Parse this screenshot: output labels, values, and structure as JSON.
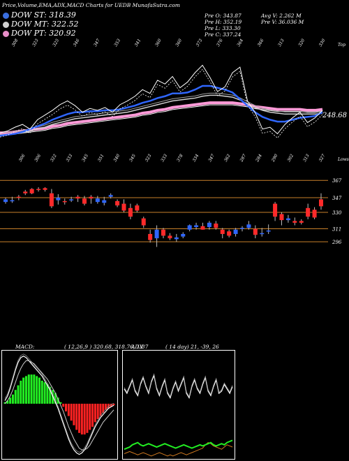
{
  "header": {
    "title": "Price,Volume,EMA,ADX,MACD Charts for UEDB MunafaSutra.com"
  },
  "legend": {
    "st": {
      "label": "DOW ST: 318.39",
      "color": "#3a6fe0"
    },
    "mt": {
      "label": "DOW MT: 322.52",
      "color": "#d0d0d0"
    },
    "pt": {
      "label": "DOW PT: 320.92",
      "color": "#e88ec8"
    }
  },
  "stats": {
    "pre_o": "Pre  O: 343.87",
    "pre_h": "Pre  H: 352.19",
    "pre_l": "Pre  L: 333.30",
    "pre_c": "Pre  C: 337.24",
    "avg_v": "Avg V: 2.262  M",
    "pre_v": "Pre  V: 36.036  M"
  },
  "chart_data": [
    {
      "type": "line",
      "name": "ema-panel",
      "top_axis_label": "Top",
      "last_value_label": "248.68",
      "top_ticks": [
        "308",
        "323",
        "325",
        "346",
        "347",
        "353",
        "341",
        "360",
        "360",
        "373",
        "376",
        "364",
        "366",
        "313",
        "320",
        "330"
      ],
      "bottom_ticks": [
        "306",
        "306",
        "322",
        "333",
        "345",
        "351",
        "340",
        "345",
        "323",
        "333",
        "378",
        "334",
        "347",
        "362",
        "287",
        "284",
        "290",
        "302",
        "313",
        "327"
      ],
      "bottom_axis_label": "Lows",
      "price": [
        296,
        298,
        302,
        305,
        300,
        310,
        315,
        320,
        326,
        330,
        325,
        318,
        322,
        320,
        323,
        318,
        326,
        330,
        335,
        342,
        338,
        352,
        348,
        356,
        344,
        350,
        360,
        368,
        355,
        340,
        345,
        360,
        366,
        330,
        318,
        300,
        302,
        295,
        305,
        312,
        318,
        307,
        312,
        320
      ],
      "ema_short": [
        293,
        294,
        295,
        297,
        300,
        303,
        306,
        310,
        313,
        316,
        318,
        318,
        319,
        319,
        320,
        320,
        321,
        323,
        325,
        328,
        330,
        333,
        335,
        338,
        338,
        339,
        342,
        346,
        346,
        344,
        342,
        339,
        332,
        325,
        318,
        313,
        310,
        308,
        308,
        310,
        312,
        313,
        314,
        318
      ],
      "ema_mid": [
        294,
        294,
        295,
        296,
        298,
        300,
        302,
        305,
        307,
        309,
        311,
        312,
        313,
        314,
        315,
        316,
        317,
        318,
        320,
        322,
        324,
        326,
        328,
        330,
        331,
        332,
        333,
        335,
        336,
        336,
        335,
        334,
        331,
        327,
        323,
        320,
        318,
        317,
        316,
        316,
        316,
        316,
        316,
        317
      ],
      "ema_long": [
        296,
        296,
        297,
        298,
        299,
        300,
        301,
        303,
        304,
        306,
        307,
        308,
        309,
        310,
        311,
        312,
        313,
        314,
        315,
        317,
        318,
        320,
        321,
        323,
        324,
        325,
        326,
        327,
        328,
        328,
        328,
        328,
        327,
        326,
        324,
        323,
        322,
        321,
        321,
        321,
        321,
        320,
        320,
        321
      ]
    },
    {
      "type": "candlestick",
      "name": "price-panel",
      "levels": [
        367,
        347,
        330,
        311,
        296
      ],
      "candles": [
        {
          "o": 342,
          "h": 347,
          "l": 340,
          "c": 345
        },
        {
          "o": 343,
          "h": 348,
          "l": 341,
          "c": 344
        },
        {
          "o": 348,
          "h": 350,
          "l": 344,
          "c": 347
        },
        {
          "o": 354,
          "h": 356,
          "l": 350,
          "c": 352
        },
        {
          "o": 357,
          "h": 358,
          "l": 351,
          "c": 352
        },
        {
          "o": 357,
          "h": 359,
          "l": 354,
          "c": 356
        },
        {
          "o": 358,
          "h": 359,
          "l": 354,
          "c": 356
        },
        {
          "o": 352,
          "h": 357,
          "l": 335,
          "c": 337
        },
        {
          "o": 344,
          "h": 351,
          "l": 339,
          "c": 347
        },
        {
          "o": 343,
          "h": 346,
          "l": 339,
          "c": 342
        },
        {
          "o": 345,
          "h": 348,
          "l": 342,
          "c": 345
        },
        {
          "o": 348,
          "h": 350,
          "l": 342,
          "c": 346
        },
        {
          "o": 346,
          "h": 349,
          "l": 338,
          "c": 340
        },
        {
          "o": 348,
          "h": 350,
          "l": 340,
          "c": 346
        },
        {
          "o": 342,
          "h": 349,
          "l": 340,
          "c": 346
        },
        {
          "o": 341,
          "h": 348,
          "l": 338,
          "c": 344
        },
        {
          "o": 348,
          "h": 352,
          "l": 346,
          "c": 350
        },
        {
          "o": 343,
          "h": 345,
          "l": 336,
          "c": 338
        },
        {
          "o": 340,
          "h": 345,
          "l": 330,
          "c": 332
        },
        {
          "o": 335,
          "h": 340,
          "l": 322,
          "c": 325
        },
        {
          "o": 338,
          "h": 340,
          "l": 330,
          "c": 332
        },
        {
          "o": 323,
          "h": 325,
          "l": 312,
          "c": 315
        },
        {
          "o": 305,
          "h": 310,
          "l": 295,
          "c": 298
        },
        {
          "o": 300,
          "h": 315,
          "l": 290,
          "c": 310
        },
        {
          "o": 310,
          "h": 312,
          "l": 300,
          "c": 303
        },
        {
          "o": 303,
          "h": 306,
          "l": 298,
          "c": 300
        },
        {
          "o": 299,
          "h": 305,
          "l": 296,
          "c": 301
        },
        {
          "o": 302,
          "h": 307,
          "l": 300,
          "c": 305
        },
        {
          "o": 310,
          "h": 316,
          "l": 308,
          "c": 315
        },
        {
          "o": 313,
          "h": 318,
          "l": 310,
          "c": 315
        },
        {
          "o": 314,
          "h": 318,
          "l": 310,
          "c": 310
        },
        {
          "o": 313,
          "h": 320,
          "l": 310,
          "c": 318
        },
        {
          "o": 317,
          "h": 320,
          "l": 310,
          "c": 312
        },
        {
          "o": 310,
          "h": 312,
          "l": 300,
          "c": 305
        },
        {
          "o": 308,
          "h": 310,
          "l": 301,
          "c": 303
        },
        {
          "o": 305,
          "h": 312,
          "l": 302,
          "c": 310
        },
        {
          "o": 312,
          "h": 314,
          "l": 308,
          "c": 312
        },
        {
          "o": 312,
          "h": 320,
          "l": 310,
          "c": 316
        },
        {
          "o": 311,
          "h": 315,
          "l": 300,
          "c": 304
        },
        {
          "o": 306,
          "h": 312,
          "l": 302,
          "c": 306
        },
        {
          "o": 309,
          "h": 316,
          "l": 305,
          "c": 309
        },
        {
          "o": 340,
          "h": 342,
          "l": 320,
          "c": 325
        },
        {
          "o": 328,
          "h": 330,
          "l": 315,
          "c": 321
        },
        {
          "o": 321,
          "h": 327,
          "l": 318,
          "c": 323
        },
        {
          "o": 320,
          "h": 324,
          "l": 315,
          "c": 318
        },
        {
          "o": 320,
          "h": 322,
          "l": 316,
          "c": 318
        },
        {
          "o": 335,
          "h": 340,
          "l": 322,
          "c": 325
        },
        {
          "o": 333,
          "h": 336,
          "l": 322,
          "c": 324
        },
        {
          "o": 345,
          "h": 352,
          "l": 333,
          "c": 337
        }
      ]
    },
    {
      "type": "bar",
      "name": "macd-panel",
      "label": "MACD:",
      "params": "( 12,26,9 ) 320.68,  318.76,  1.87",
      "histogram": [
        1,
        2,
        4,
        6,
        9,
        12,
        15,
        17,
        18,
        19,
        19,
        19,
        18,
        17,
        15,
        14,
        13,
        11,
        9,
        7,
        4,
        1,
        -2,
        -5,
        -8,
        -11,
        -14,
        -17,
        -19,
        -20,
        -20,
        -19,
        -17,
        -15,
        -12,
        -10,
        -8,
        -6,
        -4,
        -3,
        -2,
        -1
      ],
      "macd_line": [
        2,
        5,
        10,
        16,
        22,
        27,
        30,
        31,
        30,
        28,
        26,
        24,
        22,
        20,
        18,
        15,
        12,
        9,
        5,
        1,
        -3,
        -8,
        -13,
        -18,
        -23,
        -27,
        -30,
        -32,
        -33,
        -32,
        -30,
        -27,
        -23,
        -19,
        -15,
        -12,
        -9,
        -7,
        -5,
        -3,
        -2,
        -1
      ],
      "signal_line": [
        0,
        2,
        5,
        9,
        14,
        19,
        23,
        26,
        28,
        28,
        27,
        26,
        24,
        22,
        20,
        18,
        16,
        13,
        10,
        7,
        3,
        -1,
        -5,
        -10,
        -15,
        -19,
        -23,
        -26,
        -29,
        -30,
        -30,
        -29,
        -27,
        -24,
        -21,
        -18,
        -15,
        -12,
        -10,
        -8,
        -6,
        -4
      ]
    },
    {
      "type": "line",
      "name": "adx-panel",
      "label": "ADX",
      "params": "( 14  day) 21,  -39,  26",
      "white_line": [
        62,
        58,
        64,
        70,
        60,
        56,
        66,
        72,
        64,
        58,
        68,
        74,
        62,
        56,
        64,
        70,
        58,
        54,
        62,
        68,
        60,
        66,
        72,
        58,
        54,
        64,
        70,
        62,
        58,
        66,
        72,
        60,
        56,
        64,
        70,
        58,
        60,
        66,
        62,
        58,
        64
      ],
      "green_line": [
        8,
        9,
        10,
        12,
        13,
        14,
        12,
        11,
        12,
        13,
        12,
        11,
        10,
        11,
        12,
        13,
        12,
        11,
        10,
        9,
        10,
        11,
        12,
        11,
        10,
        9,
        10,
        11,
        12,
        11,
        12,
        13,
        14,
        12,
        11,
        12,
        13,
        12,
        14,
        15,
        16
      ],
      "orange_line": [
        4,
        5,
        6,
        5,
        4,
        3,
        4,
        5,
        4,
        3,
        2,
        3,
        4,
        5,
        4,
        3,
        2,
        3,
        2,
        3,
        4,
        5,
        4,
        3,
        4,
        5,
        6,
        7,
        8,
        9,
        12,
        14,
        13,
        11,
        10,
        9,
        8,
        10,
        12,
        11,
        10
      ]
    }
  ]
}
